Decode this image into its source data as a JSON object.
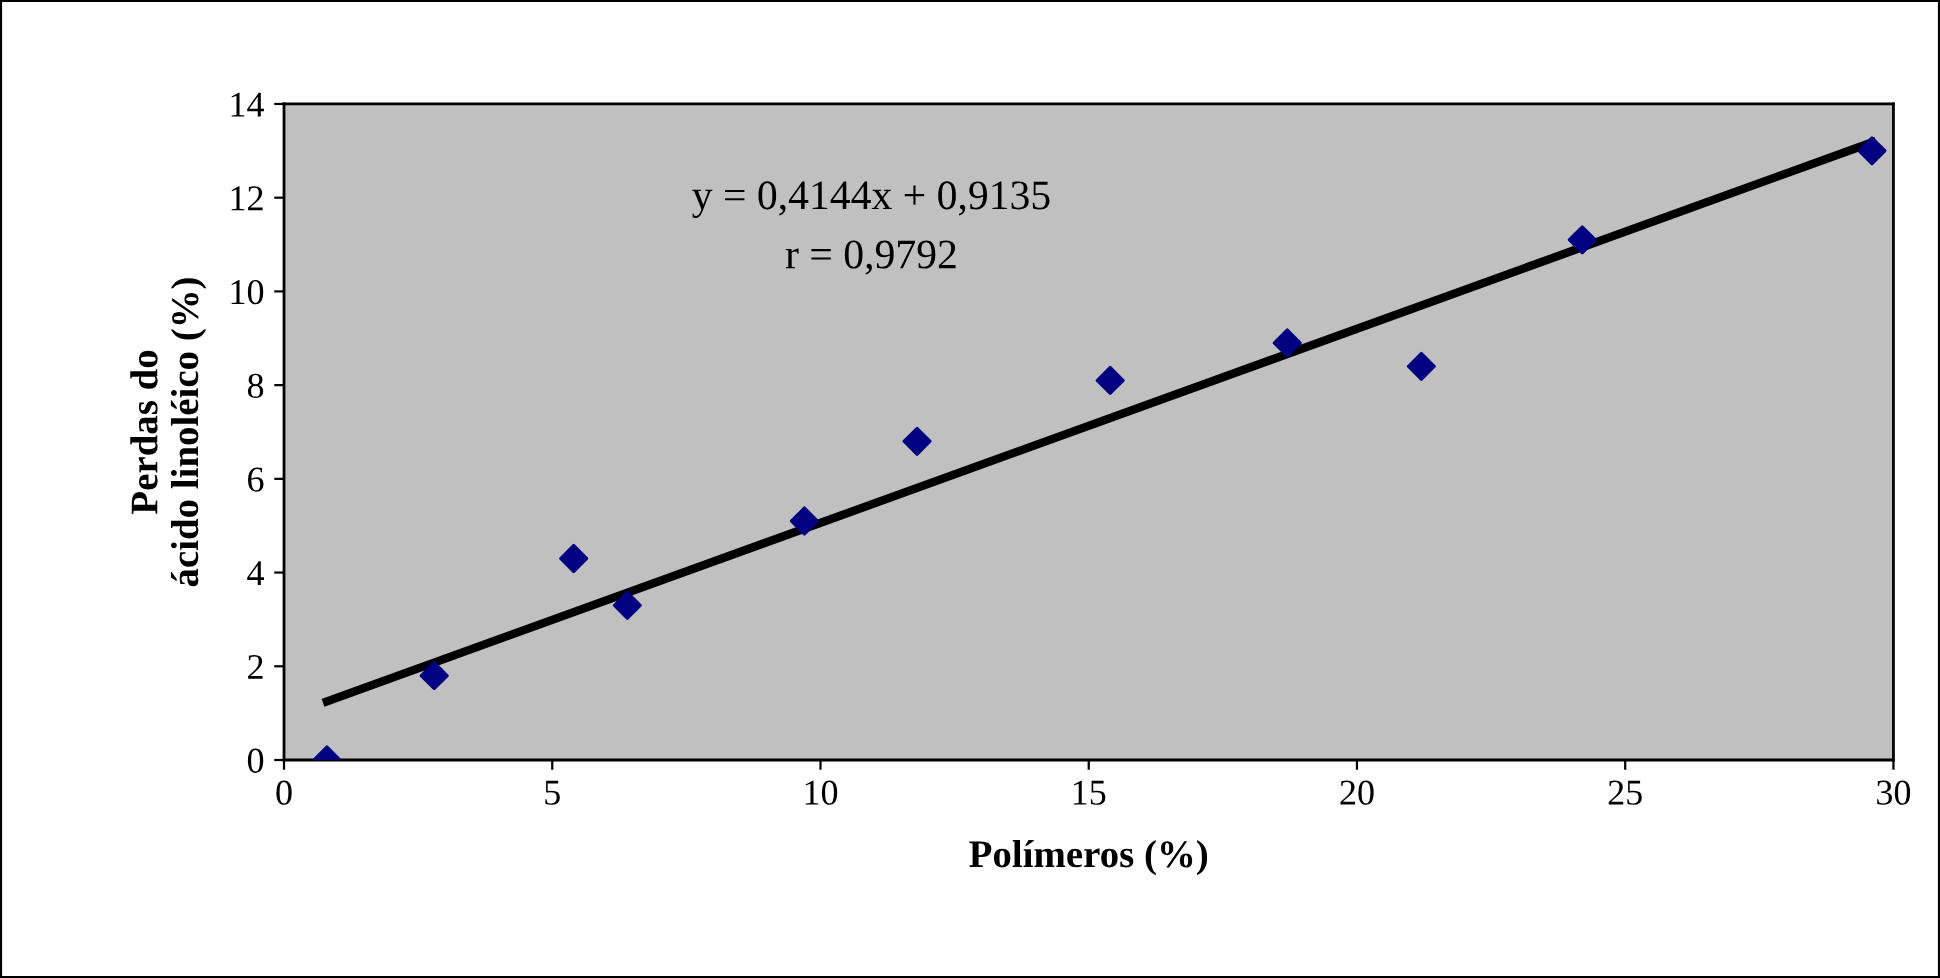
{
  "chart_data": {
    "type": "scatter",
    "xlabel": "Polímeros (%)",
    "ylabel": "Perdas do\nácido linoléico (%)",
    "annotations": [
      "y = 0,4144x + 0,9135",
      "r = 0,9792"
    ],
    "xlim": [
      0,
      30
    ],
    "xticks": [
      0,
      5,
      10,
      15,
      20,
      25,
      30
    ],
    "ylim": [
      0,
      14
    ],
    "yticks": [
      0,
      2,
      4,
      6,
      8,
      10,
      12,
      14
    ],
    "grid": false,
    "legend": false,
    "series": [
      {
        "marker": "diamond",
        "color": "#000080",
        "x": [
          0.8,
          2.8,
          5.4,
          6.4,
          9.7,
          11.8,
          15.4,
          18.7,
          21.2,
          24.2,
          29.6
        ],
        "values": [
          0,
          1.8,
          4.3,
          3.3,
          5.1,
          6.8,
          8.1,
          8.9,
          8.4,
          11.1,
          13.0
        ]
      },
      {
        "type": "line",
        "color": "#000000",
        "line_style": "solid",
        "x": [
          0.8,
          29.6
        ],
        "values": [
          1.25,
          13.18
        ]
      }
    ]
  }
}
